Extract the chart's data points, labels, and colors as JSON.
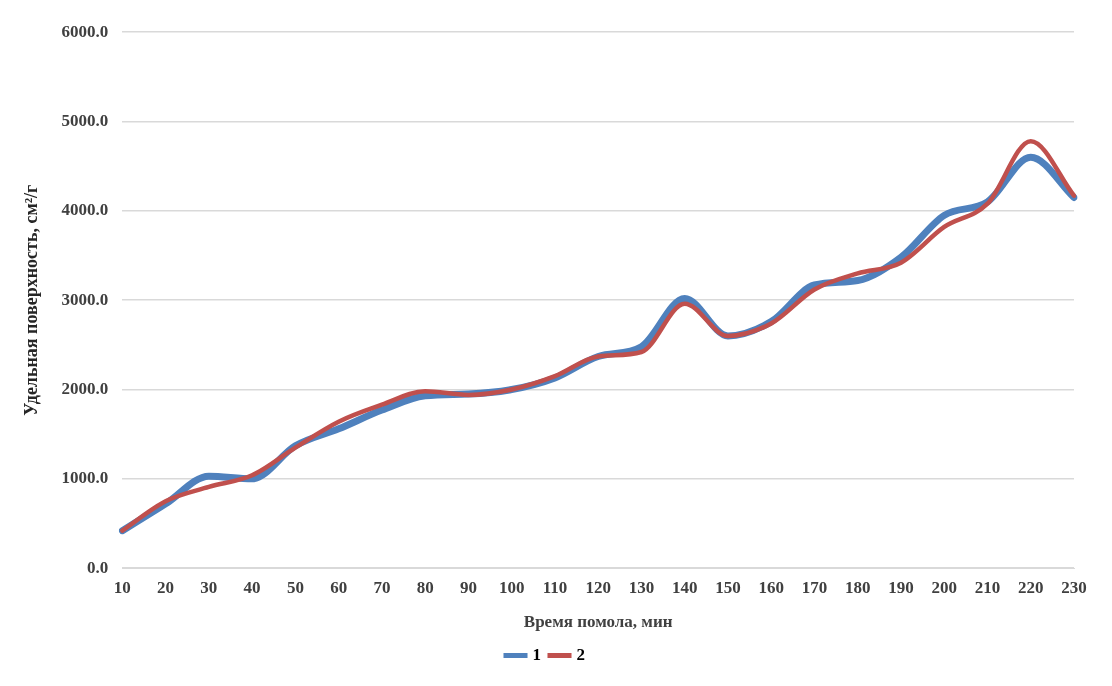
{
  "chart_data": {
    "type": "line",
    "xlabel": "Время помола, мин",
    "ylabel": "Удельная поверхность, см²/г",
    "categories": [
      "10",
      "20",
      "30",
      "40",
      "50",
      "60",
      "70",
      "80",
      "90",
      "100",
      "110",
      "120",
      "130",
      "140",
      "150",
      "160",
      "170",
      "180",
      "190",
      "200",
      "210",
      "220",
      "230"
    ],
    "series": [
      {
        "name": "1",
        "color": "#4f81bd",
        "values": [
          420,
          720,
          1030,
          1000,
          1370,
          1560,
          1770,
          1930,
          1950,
          2000,
          2130,
          2370,
          2480,
          3020,
          2600,
          2760,
          3170,
          3220,
          3480,
          3950,
          4100,
          4600,
          4150
        ]
      },
      {
        "name": "2",
        "color": "#c0504d",
        "values": [
          420,
          750,
          910,
          1040,
          1350,
          1640,
          1830,
          1980,
          1940,
          2000,
          2150,
          2370,
          2420,
          2960,
          2600,
          2740,
          3120,
          3300,
          3420,
          3820,
          4080,
          4780,
          4170
        ]
      }
    ],
    "ylim": [
      0,
      6000
    ],
    "yticks": [
      {
        "value": 0,
        "label": "0.0"
      },
      {
        "value": 1000,
        "label": "1000.0"
      },
      {
        "value": 2000,
        "label": "2000.0"
      },
      {
        "value": 3000,
        "label": "3000.0"
      },
      {
        "value": 4000,
        "label": "4000.0"
      },
      {
        "value": 5000,
        "label": "5000.0"
      },
      {
        "value": 6000,
        "label": "6000.0"
      }
    ],
    "grid": "y",
    "legend": "bottom",
    "marker": "none",
    "line_style": "solid"
  }
}
